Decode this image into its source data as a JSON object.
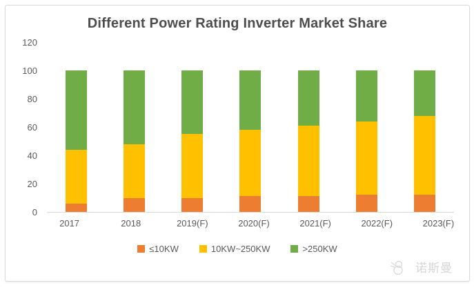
{
  "chart_data": {
    "type": "bar",
    "stacked": true,
    "title": "Different Power Rating Inverter Market Share",
    "categories": [
      "2017",
      "2018",
      "2019(F)",
      "2020(F)",
      "2021(F)",
      "2022(F)",
      "2023(F)"
    ],
    "series": [
      {
        "name": "≤10KW",
        "color": "#ED7D31",
        "values": [
          6,
          10,
          10,
          11,
          11,
          12,
          12
        ]
      },
      {
        "name": "10KW~250KW",
        "color": "#FFC000",
        "values": [
          38,
          38,
          45,
          47,
          50,
          52,
          56
        ]
      },
      {
        "name": ">250KW",
        "color": "#70AD47",
        "values": [
          56,
          52,
          45,
          42,
          39,
          36,
          32
        ]
      }
    ],
    "xlabel": "",
    "ylabel": "",
    "ylim": [
      0,
      120
    ],
    "yticks": [
      0,
      20,
      40,
      60,
      80,
      100,
      120
    ],
    "grid": false,
    "legend_position": "bottom"
  },
  "watermark": {
    "text": "诺斯曼",
    "icon": "snowman-logo-icon"
  },
  "style": {
    "title_color": "#4d4d4d",
    "axis_text_color": "#595959",
    "axis_line_color": "#d9d9d9",
    "card_border_color": "#d9d9d9",
    "watermark_color": "#d6d6d6"
  }
}
